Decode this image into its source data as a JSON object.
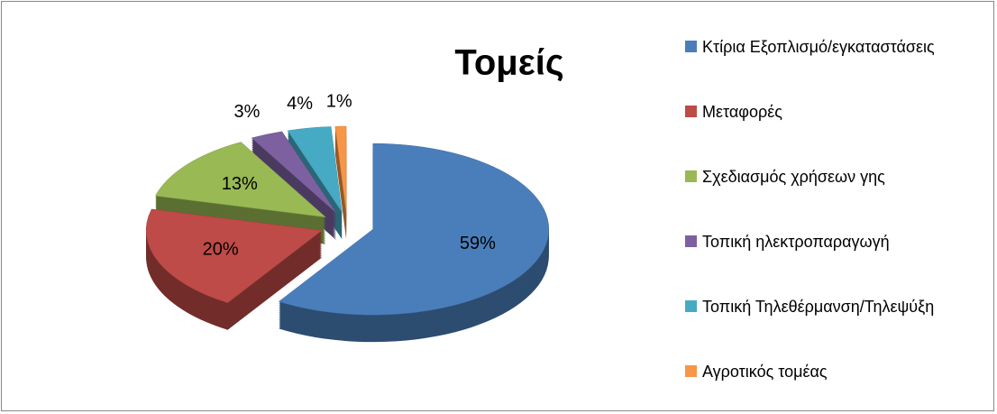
{
  "chart_data": {
    "type": "pie3d",
    "title": "Τομείς",
    "categories": [
      "Κτίρια Εξοπλισμό/εγκαταστάσεις",
      "Μεταφορές",
      "Σχεδιασμός χρήσεων γης",
      "Τοπική ηλεκτροπαραγωγή",
      "Τοπική Τηλεθέρμανση/Τηλεψύξη",
      "Αγροτικός τομέας"
    ],
    "values": [
      59,
      20,
      13,
      3,
      4,
      1
    ],
    "value_labels": [
      "59%",
      "20%",
      "13%",
      "3%",
      "4%",
      "1%"
    ],
    "colors": [
      "#4a7ebb",
      "#be4b48",
      "#98b954",
      "#7d60a0",
      "#46aac5",
      "#f79646"
    ],
    "legend": "right"
  }
}
